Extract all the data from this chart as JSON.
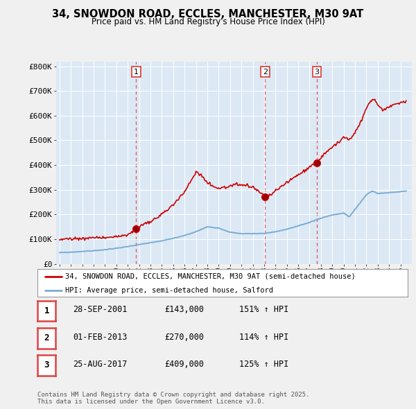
{
  "title_line1": "34, SNOWDON ROAD, ECCLES, MANCHESTER, M30 9AT",
  "title_line2": "Price paid vs. HM Land Registry's House Price Index (HPI)",
  "ylim": [
    0,
    820000
  ],
  "yticks": [
    0,
    100000,
    200000,
    300000,
    400000,
    500000,
    600000,
    700000,
    800000
  ],
  "ytick_labels": [
    "£0",
    "£100K",
    "£200K",
    "£300K",
    "£400K",
    "£500K",
    "£600K",
    "£700K",
    "£800K"
  ],
  "sales_color": "#cc0000",
  "hpi_color": "#7aadd4",
  "sale_points": [
    {
      "year": 2001.74,
      "price": 143000,
      "label": "1"
    },
    {
      "year": 2013.08,
      "price": 270000,
      "label": "2"
    },
    {
      "year": 2017.65,
      "price": 409000,
      "label": "3"
    }
  ],
  "vline_color": "#dd4444",
  "legend_label_sales": "34, SNOWDON ROAD, ECCLES, MANCHESTER, M30 9AT (semi-detached house)",
  "legend_label_hpi": "HPI: Average price, semi-detached house, Salford",
  "table_entries": [
    {
      "num": "1",
      "date": "28-SEP-2001",
      "price": "£143,000",
      "hpi": "151% ↑ HPI"
    },
    {
      "num": "2",
      "date": "01-FEB-2013",
      "price": "£270,000",
      "hpi": "114% ↑ HPI"
    },
    {
      "num": "3",
      "date": "25-AUG-2017",
      "price": "£409,000",
      "hpi": "125% ↑ HPI"
    }
  ],
  "footnote": "Contains HM Land Registry data © Crown copyright and database right 2025.\nThis data is licensed under the Open Government Licence v3.0.",
  "background_color": "#f0f0f0",
  "plot_bg_color": "#dce9f5",
  "grid_color": "#ffffff"
}
